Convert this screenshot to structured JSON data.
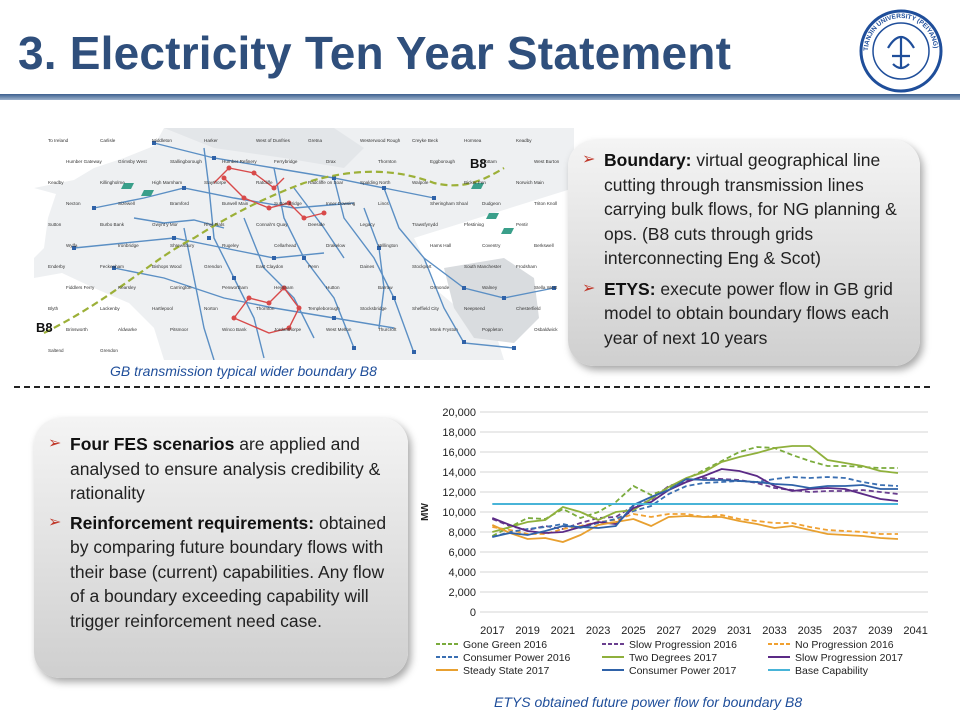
{
  "page": {
    "title": "3. Electricity Ten Year Statement",
    "map_caption": "GB transmission typical wider boundary  B8",
    "chart_caption": "ETYS obtained future power flow for boundary  B8",
    "logo_text": "TIANJIN UNIVERSITY (PEIYANG) 1895"
  },
  "map": {
    "b8_label_top": "B8",
    "b8_label_left": "B8",
    "place_labels": [
      "To Ireland",
      "Carlisle",
      "Middleton",
      "Harker",
      "West of Dunfries",
      "Gretna",
      "Westerwood Rough",
      "Creyke Beck",
      "Hornsea",
      "Keadby",
      "Humber Gateway",
      "Grimsby West",
      "Stallingborough",
      "Humber Refinery",
      "Ferrybridge",
      "Drax",
      "Thornton",
      "Eggborough",
      "Cottam",
      "West Burton",
      "Keadby",
      "Killingholme",
      "High Marnham",
      "Staythorpe",
      "Ratcliffe",
      "Radcliffe on Soar",
      "Spalding North",
      "Walpole",
      "Bicker Fen",
      "Norwich Main",
      "Necton",
      "Sizewell",
      "Bramford",
      "Burwell Main",
      "Sutton Bridge",
      "Inner Dowsing",
      "Lincs",
      "Sheringham Shoal",
      "Dudgeon",
      "Triton Knoll",
      "Sutton",
      "Burbo Bank",
      "Gwynt y Mor",
      "Rhyl Flats",
      "Connah's Quay",
      "Deeside",
      "Legacy",
      "Trawsfynydd",
      "Ffestiniog",
      "Pentir",
      "Wylfa",
      "Ironbridge",
      "Shrewsbury",
      "Rugeley",
      "Cellarhead",
      "Drakelow",
      "Willington",
      "Hams Hall",
      "Coventry",
      "Berkswell",
      "Enderby",
      "Feckenham",
      "Bishops Wood",
      "Grendon",
      "East Claydon",
      "Penn",
      "Daines",
      "Stockport",
      "South Manchester",
      "Frodsham",
      "Fiddlers Ferry",
      "Kearsley",
      "Carrington",
      "Penwortham",
      "Heysham",
      "Hutton",
      "Barrow",
      "Ormonde",
      "Walney",
      "Stella West",
      "Blyth",
      "Lackenby",
      "Hartlepool",
      "Norton",
      "Thornton",
      "Templeborough",
      "Stocksbridge",
      "Sheffield City",
      "Neepsend",
      "Chesterfield",
      "Brinsworth",
      "Aldwarke",
      "Pitsmoor",
      "Winco Bank",
      "Jordanthorpe",
      "West Melton",
      "Thurcroft",
      "Monk Fryston",
      "Poppleton",
      "Osbaldwick",
      "Saltend",
      "Grendon"
    ]
  },
  "boxes": {
    "top": [
      {
        "bold": "Boundary:",
        "text": " virtual geographical line cutting through transmission lines carrying bulk flows, for NG planning & ops. (B8 cuts through grids interconnecting  Eng & Scot)"
      },
      {
        "bold": "ETYS:",
        "text": " execute power flow in GB grid model to obtain boundary flows each year of next 10 years"
      }
    ],
    "left": [
      {
        "bold": "Four FES scenarios",
        "text": " are applied and analysed to ensure analysis credibility & rationality"
      },
      {
        "bold": "Reinforcement requirements:",
        "text": " obtained by comparing future boundary flows with their base (current) capabilities. Any flow of a boundary exceeding capability will trigger reinforcement need case."
      }
    ]
  },
  "chart_data": {
    "type": "line",
    "title": "",
    "xlabel": "",
    "ylabel": "MW",
    "xlim": [
      2016.3,
      2041.7
    ],
    "ylim": [
      0,
      20000
    ],
    "yticks": [
      0,
      2000,
      4000,
      6000,
      8000,
      10000,
      12000,
      14000,
      16000,
      18000,
      20000
    ],
    "ytick_labels": [
      "0",
      "2,000",
      "4,000",
      "6,000",
      "8,000",
      "10,000",
      "12,000",
      "14,000",
      "16,000",
      "18,000",
      "20,000"
    ],
    "xticks": [
      2017,
      2019,
      2021,
      2023,
      2025,
      2027,
      2029,
      2031,
      2033,
      2035,
      2037,
      2039,
      2041
    ],
    "grid": true,
    "legend_position": "bottom",
    "x": [
      2017,
      2018,
      2019,
      2020,
      2021,
      2022,
      2023,
      2024,
      2025,
      2026,
      2027,
      2028,
      2029,
      2030,
      2031,
      2032,
      2033,
      2034,
      2035,
      2036,
      2037,
      2038,
      2039,
      2040
    ],
    "series": [
      {
        "name": "Gone Green 2016",
        "color": "#7aab3c",
        "dash": true,
        "values": [
          7600,
          8500,
          9400,
          9300,
          10300,
          9400,
          10000,
          11000,
          12600,
          11700,
          12400,
          13300,
          14200,
          15100,
          16000,
          16500,
          16400,
          15700,
          15100,
          14600,
          14600,
          14500,
          14400,
          14400
        ]
      },
      {
        "name": "Slow Progression 2016",
        "color": "#6a3f8f",
        "dash": true,
        "values": [
          9300,
          8600,
          8200,
          8600,
          8300,
          8900,
          9400,
          9500,
          10600,
          11200,
          12600,
          13100,
          13400,
          13300,
          13200,
          12900,
          12400,
          12200,
          12000,
          12100,
          12100,
          12200,
          12000,
          11800
        ]
      },
      {
        "name": "No Progression 2016",
        "color": "#f0a030",
        "dash": true,
        "values": [
          8500,
          8200,
          7800,
          7800,
          8300,
          8600,
          9000,
          9200,
          9800,
          9500,
          9800,
          9800,
          9500,
          9700,
          9300,
          9100,
          8900,
          8900,
          8500,
          8200,
          8100,
          8000,
          7800,
          7800
        ]
      },
      {
        "name": "Consumer Power 2016",
        "color": "#3a6fb2",
        "dash": true,
        "values": [
          7500,
          8000,
          8300,
          8500,
          8800,
          8400,
          8900,
          9300,
          10100,
          10600,
          11800,
          12600,
          12900,
          13000,
          13100,
          13000,
          13300,
          13500,
          13400,
          13500,
          13400,
          13000,
          12700,
          12600
        ]
      },
      {
        "name": "Two Degrees 2017",
        "color": "#8fb03c",
        "dash": false,
        "values": [
          8000,
          8500,
          9000,
          9200,
          10500,
          10000,
          9200,
          10000,
          10200,
          11300,
          12500,
          13400,
          14000,
          15000,
          15500,
          15900,
          16400,
          16600,
          16600,
          15200,
          14900,
          14600,
          14100,
          13900
        ]
      },
      {
        "name": "Slow Progression 2017",
        "color": "#5b2a86",
        "dash": false,
        "values": [
          9400,
          8700,
          8100,
          7900,
          8000,
          8500,
          9000,
          8800,
          10400,
          11000,
          12200,
          13000,
          13600,
          14300,
          14100,
          13600,
          12600,
          12100,
          12300,
          12400,
          12300,
          11800,
          11300,
          11100
        ]
      },
      {
        "name": "Steady State 2017",
        "color": "#e8a030",
        "dash": false,
        "values": [
          8700,
          7900,
          7300,
          7400,
          7000,
          7700,
          8700,
          9000,
          9300,
          8600,
          9500,
          9600,
          9500,
          9500,
          9100,
          8800,
          8400,
          8600,
          8200,
          7800,
          7700,
          7600,
          7400,
          7300
        ]
      },
      {
        "name": "Consumer Power 2017",
        "color": "#2f62a8",
        "dash": false,
        "values": [
          7500,
          7900,
          7700,
          8100,
          8600,
          8500,
          8400,
          8600,
          10700,
          11500,
          12200,
          13300,
          13200,
          13200,
          13100,
          13000,
          12800,
          12700,
          12400,
          12600,
          12600,
          12700,
          12300,
          12300
        ]
      },
      {
        "name": "Base Capability",
        "color": "#48b4d8",
        "dash": false,
        "values": [
          10800,
          10800,
          10800,
          10800,
          10800,
          10800,
          10800,
          10800,
          10800,
          10800,
          10800,
          10800,
          10800,
          10800,
          10800,
          10800,
          10800,
          10800,
          10800,
          10800,
          10800,
          10800,
          10800,
          10800
        ]
      }
    ]
  }
}
